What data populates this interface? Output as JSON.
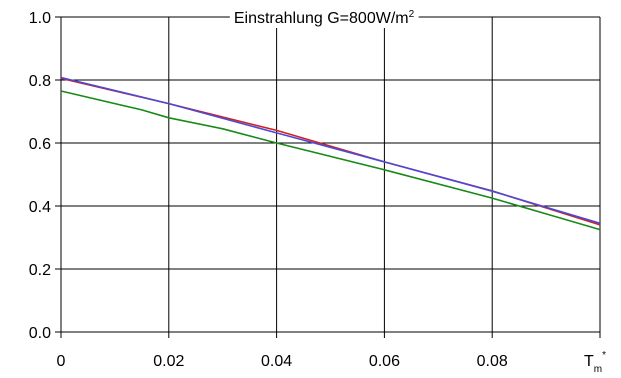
{
  "chart_data": {
    "type": "line",
    "title": "Einstrahlung G=800W/m",
    "title_superscript": "2",
    "xlabel_main": "T",
    "xlabel_sub": "m",
    "xlabel_sup": "*",
    "ylabel": "",
    "xlim": [
      0,
      0.1
    ],
    "ylim": [
      0.0,
      1.0
    ],
    "grid": true,
    "legend": "none",
    "x_ticks": [
      "0",
      "0.02",
      "0.04",
      "0.06",
      "0.08"
    ],
    "y_ticks": [
      "0.0",
      "0.2",
      "0.4",
      "0.6",
      "0.8",
      "1.0"
    ],
    "series": [
      {
        "color": "#d42020",
        "x": [
          0,
          0.02,
          0.04,
          0.06,
          0.08,
          0.1
        ],
        "y": [
          0.805,
          0.725,
          0.64,
          0.54,
          0.448,
          0.34
        ]
      },
      {
        "color": "#4a4ad8",
        "x": [
          0,
          0.02,
          0.04,
          0.06,
          0.08,
          0.1
        ],
        "y": [
          0.808,
          0.725,
          0.632,
          0.54,
          0.447,
          0.345
        ]
      },
      {
        "color": "#188a18",
        "x": [
          0,
          0.015,
          0.02,
          0.03,
          0.04,
          0.06,
          0.08,
          0.09,
          0.1
        ],
        "y": [
          0.765,
          0.705,
          0.68,
          0.645,
          0.6,
          0.515,
          0.425,
          0.375,
          0.325
        ]
      }
    ]
  }
}
